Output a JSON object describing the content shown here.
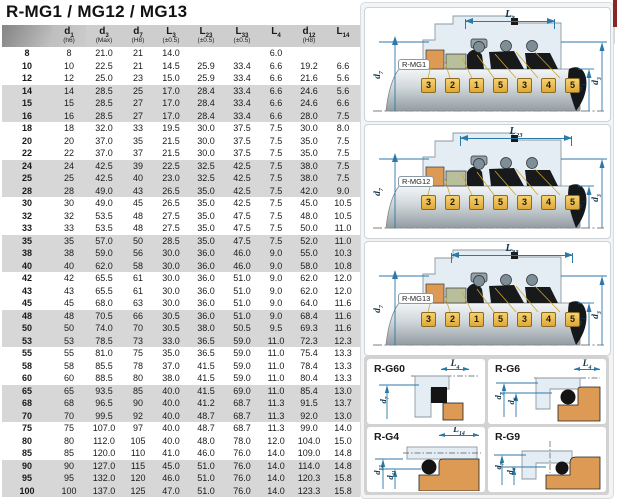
{
  "title": "R-MG1 / MG12 / MG13",
  "colors": {
    "dimension_blue": "#2b79a8",
    "callout_gold": "#eec155",
    "seat_orange": "#dd9a55",
    "bellows_black": "#17191a",
    "housing_blue": "#e4edf3",
    "band_gray": "#d7d7d7",
    "accent_red": "#8a2427"
  },
  "table": {
    "columns": [
      {
        "main": "",
        "sub": "",
        "tol": ""
      },
      {
        "main": "d",
        "sub": "1",
        "tol": "(h6)"
      },
      {
        "main": "d",
        "sub": "3",
        "tol": "(Max)"
      },
      {
        "main": "d",
        "sub": "7",
        "tol": "(H8)"
      },
      {
        "main": "L",
        "sub": "3",
        "tol": "(±0.5)"
      },
      {
        "main": "L",
        "sub": "23",
        "tol": "(±0.5)"
      },
      {
        "main": "L",
        "sub": "33",
        "tol": "(±0.5)"
      },
      {
        "main": "L",
        "sub": "4",
        "tol": ""
      },
      {
        "main": "d",
        "sub": "12",
        "tol": "(H8)"
      },
      {
        "main": "L",
        "sub": "14",
        "tol": ""
      }
    ],
    "rows": [
      [
        "8",
        "8",
        "21.0",
        "21",
        "14.0",
        "",
        "",
        "6.0",
        "",
        ""
      ],
      [
        "10",
        "10",
        "22.5",
        "21",
        "14.5",
        "25.9",
        "33.4",
        "6.6",
        "19.2",
        "6.6"
      ],
      [
        "12",
        "12",
        "25.0",
        "23",
        "15.0",
        "25.9",
        "33.4",
        "6.6",
        "21.6",
        "5.6"
      ],
      [
        "14",
        "14",
        "28.5",
        "25",
        "17.0",
        "28.4",
        "33.4",
        "6.6",
        "24.6",
        "5.6"
      ],
      [
        "15",
        "15",
        "28.5",
        "27",
        "17.0",
        "28.4",
        "33.4",
        "6.6",
        "24.6",
        "6.6"
      ],
      [
        "16",
        "16",
        "28.5",
        "27",
        "17.0",
        "28.4",
        "33.4",
        "6.6",
        "28.0",
        "7.5"
      ],
      [
        "18",
        "18",
        "32.0",
        "33",
        "19.5",
        "30.0",
        "37.5",
        "7.5",
        "30.0",
        "8.0"
      ],
      [
        "20",
        "20",
        "37.0",
        "35",
        "21.5",
        "30.0",
        "37.5",
        "7.5",
        "35.0",
        "7.5"
      ],
      [
        "22",
        "22",
        "37.0",
        "37",
        "21.5",
        "30.0",
        "37.5",
        "7.5",
        "35.0",
        "7.5"
      ],
      [
        "24",
        "24",
        "42.5",
        "39",
        "22.5",
        "32.5",
        "42.5",
        "7.5",
        "38.0",
        "7.5"
      ],
      [
        "25",
        "25",
        "42.5",
        "40",
        "23.0",
        "32.5",
        "42.5",
        "7.5",
        "38.0",
        "7.5"
      ],
      [
        "28",
        "28",
        "49.0",
        "43",
        "26.5",
        "35.0",
        "42.5",
        "7.5",
        "42.0",
        "9.0"
      ],
      [
        "30",
        "30",
        "49.0",
        "45",
        "26.5",
        "35.0",
        "42.5",
        "7.5",
        "45.0",
        "10.5"
      ],
      [
        "32",
        "32",
        "53.5",
        "48",
        "27.5",
        "35.0",
        "47.5",
        "7.5",
        "48.0",
        "10.5"
      ],
      [
        "33",
        "33",
        "53.5",
        "48",
        "27.5",
        "35.0",
        "47.5",
        "7.5",
        "50.0",
        "11.0"
      ],
      [
        "35",
        "35",
        "57.0",
        "50",
        "28.5",
        "35.0",
        "47.5",
        "7.5",
        "52.0",
        "11.0"
      ],
      [
        "38",
        "38",
        "59.0",
        "56",
        "30.0",
        "36.0",
        "46.0",
        "9.0",
        "55.0",
        "10.3"
      ],
      [
        "40",
        "40",
        "62.0",
        "58",
        "30.0",
        "36.0",
        "46.0",
        "9.0",
        "58.0",
        "10.8"
      ],
      [
        "42",
        "42",
        "65.5",
        "61",
        "30.0",
        "36.0",
        "51.0",
        "9.0",
        "62.0",
        "12.0"
      ],
      [
        "43",
        "43",
        "65.5",
        "61",
        "30.0",
        "36.0",
        "51.0",
        "9.0",
        "62.0",
        "12.0"
      ],
      [
        "45",
        "45",
        "68.0",
        "63",
        "30.0",
        "36.0",
        "51.0",
        "9.0",
        "64.0",
        "11.6"
      ],
      [
        "48",
        "48",
        "70.5",
        "66",
        "30.5",
        "36.0",
        "51.0",
        "9.0",
        "68.4",
        "11.6"
      ],
      [
        "50",
        "50",
        "74.0",
        "70",
        "30.5",
        "38.0",
        "50.5",
        "9.5",
        "69.3",
        "11.6"
      ],
      [
        "53",
        "53",
        "78.5",
        "73",
        "33.0",
        "36.5",
        "59.0",
        "11.0",
        "72.3",
        "12.3"
      ],
      [
        "55",
        "55",
        "81.0",
        "75",
        "35.0",
        "36.5",
        "59.0",
        "11.0",
        "75.4",
        "13.3"
      ],
      [
        "58",
        "58",
        "85.5",
        "78",
        "37.0",
        "41.5",
        "59.0",
        "11.0",
        "78.4",
        "13.3"
      ],
      [
        "60",
        "60",
        "88.5",
        "80",
        "38.0",
        "41.5",
        "59.0",
        "11.0",
        "80.4",
        "13.3"
      ],
      [
        "65",
        "65",
        "93.5",
        "85",
        "40.0",
        "41.5",
        "69.0",
        "11.0",
        "85.4",
        "13.0"
      ],
      [
        "68",
        "68",
        "96.5",
        "90",
        "40.0",
        "41.2",
        "68.7",
        "11.3",
        "91.5",
        "13.7"
      ],
      [
        "70",
        "70",
        "99.5",
        "92",
        "40.0",
        "48.7",
        "68.7",
        "11.3",
        "92.0",
        "13.0"
      ],
      [
        "75",
        "75",
        "107.0",
        "97",
        "40.0",
        "48.7",
        "68.7",
        "11.3",
        "99.0",
        "14.0"
      ],
      [
        "80",
        "80",
        "112.0",
        "105",
        "40.0",
        "48.0",
        "78.0",
        "12.0",
        "104.0",
        "15.0"
      ],
      [
        "85",
        "85",
        "120.0",
        "110",
        "41.0",
        "46.0",
        "76.0",
        "14.0",
        "109.0",
        "14.8"
      ],
      [
        "90",
        "90",
        "127.0",
        "115",
        "45.0",
        "51.0",
        "76.0",
        "14.0",
        "114.0",
        "14.8"
      ],
      [
        "95",
        "95",
        "132.0",
        "120",
        "46.0",
        "51.0",
        "76.0",
        "14.0",
        "120.3",
        "15.8"
      ],
      [
        "100",
        "100",
        "137.0",
        "125",
        "47.0",
        "51.0",
        "76.0",
        "14.0",
        "123.3",
        "15.8"
      ]
    ]
  },
  "diagrams": [
    {
      "name": "R-MG1",
      "top_dim": {
        "main": "L",
        "sub": "3"
      },
      "left_dim": {
        "main": "d",
        "sub": "7"
      },
      "right_dims": [
        {
          "main": "d",
          "sub": "1"
        },
        {
          "main": "d",
          "sub": "3"
        }
      ],
      "callouts": [
        "3",
        "2",
        "1",
        "5",
        "3",
        "4",
        "5"
      ]
    },
    {
      "name": "R-MG12",
      "top_dim": {
        "main": "L",
        "sub": "23"
      },
      "left_dim": {
        "main": "d",
        "sub": "7"
      },
      "right_dims": [
        {
          "main": "d",
          "sub": "1"
        },
        {
          "main": "d",
          "sub": "3"
        }
      ],
      "callouts": [
        "3",
        "2",
        "1",
        "5",
        "3",
        "4",
        "5"
      ]
    },
    {
      "name": "R-MG13",
      "top_dim": {
        "main": "L",
        "sub": "33"
      },
      "left_dim": {
        "main": "d",
        "sub": "7"
      },
      "right_dims": [
        {
          "main": "d",
          "sub": "1"
        },
        {
          "main": "d",
          "sub": "3"
        }
      ],
      "callouts": [
        "3",
        "2",
        "1",
        "5",
        "3",
        "4",
        "5"
      ]
    }
  ],
  "seat_cards": [
    {
      "name": "R-G60",
      "top_dim": {
        "main": "L",
        "sub": "4"
      },
      "side_dims": [
        {
          "main": "d",
          "sub": "7"
        }
      ]
    },
    {
      "name": "R-G6",
      "top_dim": {
        "main": "L",
        "sub": "4"
      },
      "side_dims": [
        {
          "main": "d",
          "sub": "7"
        },
        {
          "main": "d",
          "sub": "6"
        }
      ]
    },
    {
      "name": "R-G4",
      "top_dim": {
        "main": "L",
        "sub": "14"
      },
      "side_dims": [
        {
          "main": "d",
          "sub": "12"
        },
        {
          "main": "d",
          "sub": "11"
        }
      ]
    },
    {
      "name": "R-G9",
      "side_dims": [
        {
          "main": "d",
          "sub": "7"
        },
        {
          "main": "d",
          "sub": "6"
        }
      ]
    }
  ]
}
